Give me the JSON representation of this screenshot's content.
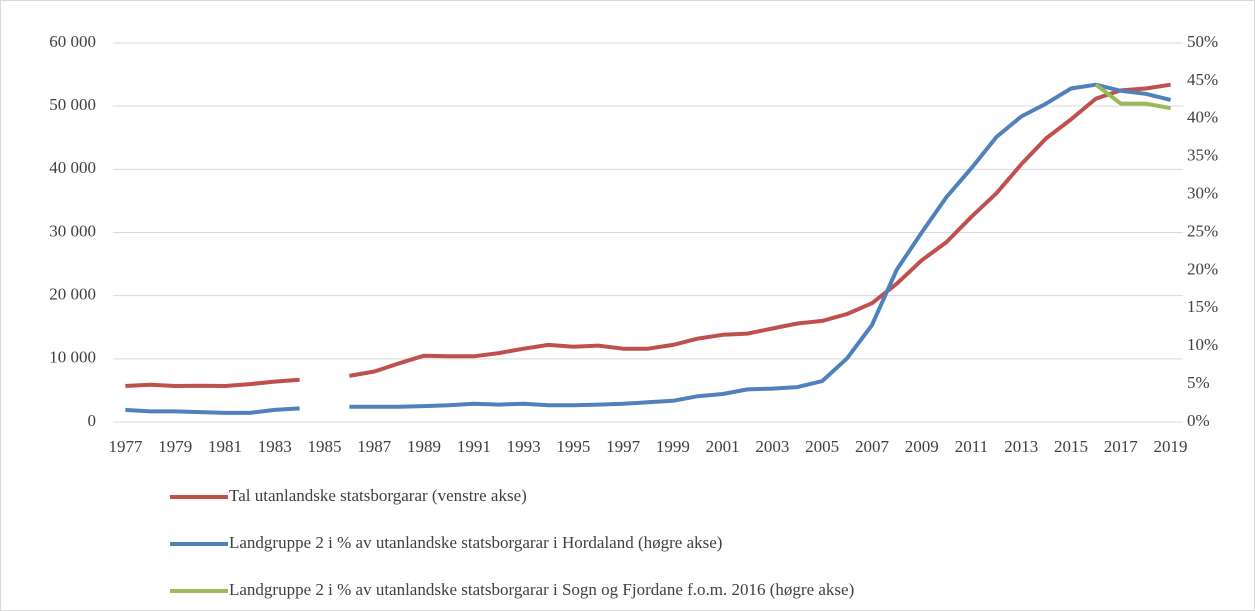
{
  "chart_data": {
    "type": "line",
    "categories": [
      "1977",
      null,
      "1979",
      null,
      "1981",
      null,
      "1983",
      null,
      "1985",
      null,
      "1987",
      null,
      "1989",
      null,
      "1991",
      null,
      "1993",
      null,
      "1995",
      null,
      "1997",
      null,
      "1999",
      null,
      "2001",
      null,
      "2003",
      null,
      "2005",
      null,
      "2007",
      null,
      "2009",
      null,
      "2011",
      null,
      "2013",
      null,
      "2015",
      null,
      "2017",
      null,
      "2019"
    ],
    "series": [
      {
        "name": "Tal utanlandske statsborgarar (venstre akse)",
        "color": "#c0504d",
        "axis": "y",
        "values": [
          5700,
          5900,
          5700,
          5750,
          5700,
          6000,
          6400,
          6700,
          null,
          7300,
          8000,
          9300,
          10500,
          10400,
          10400,
          10900,
          11600,
          12200,
          11900,
          12100,
          11600,
          11600,
          12200,
          13200,
          13800,
          14000,
          14800,
          15600,
          16000,
          17100,
          18800,
          21900,
          25600,
          28500,
          32500,
          36200,
          40800,
          44900,
          47900,
          51200,
          52500,
          52800,
          53400
        ]
      },
      {
        "name": "Landgruppe 2 i % av utanlandske statsborgarar i Hordaland (høgre akse)",
        "color": "#4f81bd",
        "axis": "y2",
        "values": [
          1.6,
          1.4,
          1.4,
          1.3,
          1.2,
          1.2,
          1.6,
          1.8,
          null,
          2.0,
          2.0,
          2.0,
          2.1,
          2.2,
          2.4,
          2.3,
          2.4,
          2.2,
          2.2,
          2.3,
          2.4,
          2.6,
          2.8,
          3.4,
          3.7,
          4.3,
          4.4,
          4.6,
          5.4,
          8.4,
          12.8,
          20.1,
          25,
          29.7,
          33.5,
          37.6,
          40.3,
          42,
          44,
          44.5,
          43.7,
          43.3,
          42.5
        ]
      },
      {
        "name": "Landgruppe 2 i % av utanlandske statsborgarar i Sogn og Fjordane f.o.m. 2016 (høgre akse)",
        "color": "#9bbb59",
        "axis": "y2",
        "values": [
          null,
          null,
          null,
          null,
          null,
          null,
          null,
          null,
          null,
          null,
          null,
          null,
          null,
          null,
          null,
          null,
          null,
          null,
          null,
          null,
          null,
          null,
          null,
          null,
          null,
          null,
          null,
          null,
          null,
          null,
          null,
          null,
          null,
          null,
          null,
          null,
          null,
          null,
          null,
          44.5,
          42,
          42,
          41.4
        ]
      }
    ],
    "ylim": [
      0,
      60000
    ],
    "yticks": [
      0,
      {
        "value": 10000,
        "label": "10 000"
      },
      {
        "value": 20000,
        "label": "20 000"
      },
      {
        "value": 30000,
        "label": "30 000"
      },
      {
        "value": 40000,
        "label": "40 000"
      },
      {
        "value": 50000,
        "label": "50 000"
      },
      {
        "value": 60000,
        "label": "60 000"
      }
    ],
    "y2lim": [
      0,
      50
    ],
    "y2ticks": [
      {
        "value": 0,
        "label": "0%"
      },
      {
        "value": 5,
        "label": "5%"
      },
      {
        "value": 10,
        "label": "10%"
      },
      {
        "value": 15,
        "label": "15%"
      },
      {
        "value": 20,
        "label": "20%"
      },
      {
        "value": 25,
        "label": "25%"
      },
      {
        "value": 30,
        "label": "30%"
      },
      {
        "value": 35,
        "label": "35%"
      },
      {
        "value": 40,
        "label": "40%"
      },
      {
        "value": 45,
        "label": "45%"
      },
      {
        "value": 50,
        "label": "50%"
      }
    ],
    "grid": true,
    "legend": "bottom"
  }
}
